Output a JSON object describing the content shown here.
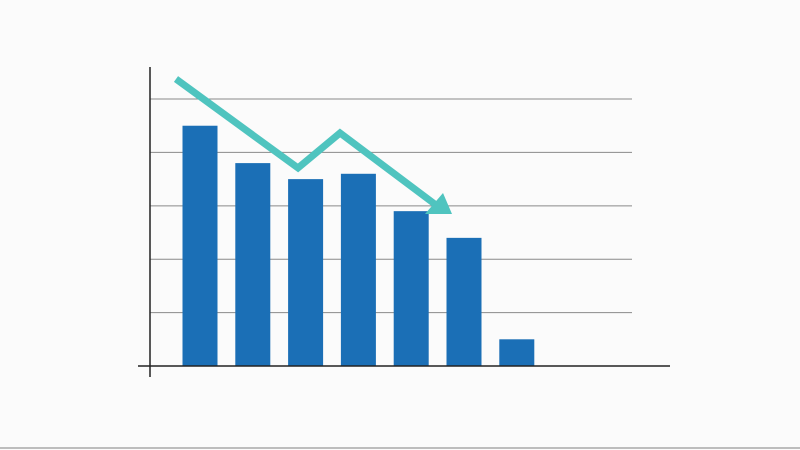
{
  "chart_data": {
    "type": "bar",
    "categories": [
      null,
      null,
      null,
      null,
      null,
      null,
      null
    ],
    "values": [
      4.5,
      3.8,
      3.5,
      3.6,
      2.9,
      2.4,
      0.5
    ],
    "color": "#1b6fb6",
    "ylim": [
      0,
      5.6
    ],
    "yticks": [
      1,
      2,
      3,
      4,
      5
    ],
    "grid": true
  }
}
